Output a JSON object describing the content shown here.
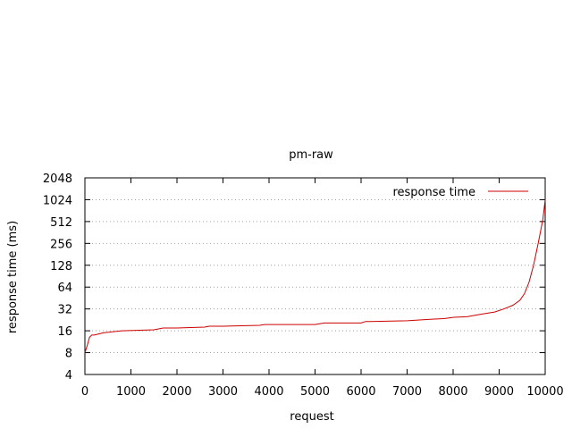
{
  "chart_data": {
    "type": "line",
    "title": "pm-raw",
    "xlabel": "request",
    "ylabel": "response time (ms)",
    "xlim": [
      0,
      10000
    ],
    "ylim": [
      4,
      2048
    ],
    "yscale": "log2",
    "x_ticks": [
      0,
      1000,
      2000,
      3000,
      4000,
      5000,
      6000,
      7000,
      8000,
      9000,
      10000
    ],
    "y_ticks": [
      4,
      8,
      16,
      32,
      64,
      128,
      256,
      512,
      1024,
      2048
    ],
    "grid": "horizontal dotted at y ticks",
    "legend_position": "top-right",
    "series": [
      {
        "name": "response time",
        "color": "#cc0000",
        "x": [
          0,
          50,
          100,
          150,
          200,
          300,
          400,
          800,
          1500,
          1700,
          2000,
          2600,
          2700,
          3000,
          3800,
          3900,
          4000,
          5000,
          5100,
          5200,
          6000,
          6100,
          6200,
          7000,
          7500,
          7800,
          8000,
          8300,
          8600,
          8900,
          9100,
          9300,
          9450,
          9550,
          9650,
          9750,
          9850,
          9950,
          10000
        ],
        "y": [
          8,
          10,
          13,
          14,
          14,
          14.5,
          15,
          16,
          16.5,
          17.5,
          17.5,
          18,
          18.5,
          18.5,
          19,
          19.5,
          19.5,
          19.5,
          20,
          20.5,
          20.5,
          21.5,
          21.5,
          22,
          23,
          23.5,
          24.5,
          25,
          27,
          29,
          32,
          36,
          42,
          52,
          75,
          130,
          260,
          550,
          1024
        ]
      }
    ]
  }
}
